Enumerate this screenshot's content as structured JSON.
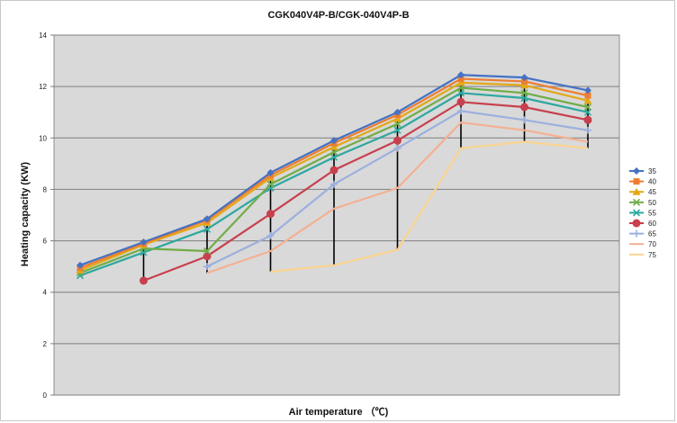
{
  "chart_data": {
    "type": "line",
    "title": "CGK040V4P-B/CGK-040V4P-B",
    "xlabel": "Air temperature （℃)",
    "ylabel": "Heating capacity (KW)",
    "ylim": [
      0,
      14
    ],
    "yticks": [
      "0",
      "2",
      "4",
      "6",
      "8",
      "10",
      "12",
      "14"
    ],
    "categories": [
      "",
      "",
      "",
      "",
      "",
      "",
      "",
      "",
      ""
    ],
    "grid": true,
    "legend_position": "right",
    "series": [
      {
        "name": "35",
        "color": "#4472C4",
        "marker": "diamond",
        "values": [
          5.05,
          5.95,
          6.85,
          8.65,
          9.9,
          11.0,
          12.45,
          12.35,
          11.85
        ]
      },
      {
        "name": "40",
        "color": "#ED7D31",
        "marker": "square",
        "values": [
          4.95,
          5.9,
          6.8,
          8.55,
          9.8,
          10.9,
          12.3,
          12.2,
          11.65
        ]
      },
      {
        "name": "45",
        "color": "#E3A817",
        "marker": "triangle",
        "values": [
          4.85,
          5.85,
          6.7,
          8.45,
          9.65,
          10.75,
          12.15,
          12.05,
          11.45
        ]
      },
      {
        "name": "50",
        "color": "#70AD47",
        "marker": "x",
        "values": [
          4.75,
          5.7,
          5.6,
          8.2,
          9.45,
          10.55,
          11.95,
          11.75,
          11.2
        ]
      },
      {
        "name": "55",
        "color": "#2DA8A0",
        "marker": "x",
        "values": [
          4.65,
          5.55,
          6.45,
          8.05,
          9.25,
          10.3,
          11.75,
          11.55,
          11.0
        ]
      },
      {
        "name": "60",
        "color": "#C7404E",
        "marker": "circle",
        "values": [
          null,
          4.45,
          5.4,
          7.05,
          8.75,
          9.9,
          11.4,
          11.2,
          10.7
        ]
      },
      {
        "name": "65",
        "color": "#9BB0DE",
        "marker": "plus",
        "values": [
          null,
          null,
          5.0,
          6.2,
          8.2,
          9.6,
          11.05,
          10.7,
          10.3
        ]
      },
      {
        "name": "70",
        "color": "#F4B093",
        "marker": "none",
        "values": [
          null,
          null,
          4.75,
          5.6,
          7.25,
          8.05,
          10.6,
          10.3,
          9.85
        ]
      },
      {
        "name": "75",
        "color": "#FAD38E",
        "marker": "none",
        "values": [
          null,
          null,
          null,
          4.8,
          5.05,
          5.65,
          9.6,
          9.85,
          9.6
        ]
      }
    ],
    "drop_lines": true
  }
}
